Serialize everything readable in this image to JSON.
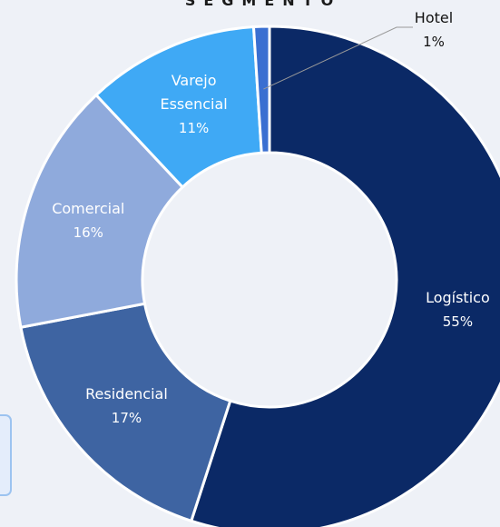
{
  "chart_data": {
    "type": "donut",
    "title": "SEGMENTO",
    "categories": [
      "Logístico",
      "Residencial",
      "Comercial",
      "Varejo Essencial",
      "Hotel"
    ],
    "values": [
      55,
      17,
      16,
      11,
      1
    ],
    "value_labels": [
      "55%",
      "17%",
      "16%",
      "11%",
      "1%"
    ],
    "colors": [
      "#0b2966",
      "#3e64a2",
      "#8faadc",
      "#3fa9f5",
      "#3a6fd1"
    ]
  }
}
